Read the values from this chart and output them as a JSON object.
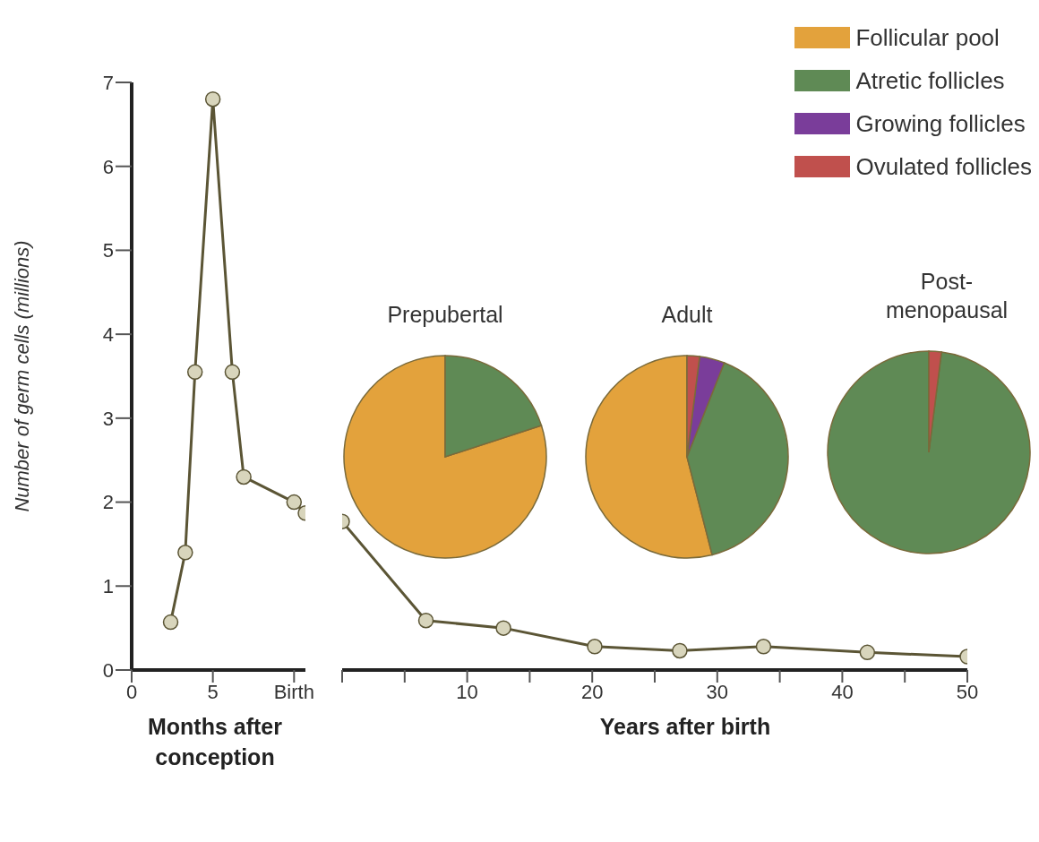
{
  "chart_data": [
    {
      "type": "line",
      "xlabel": "Months after conception",
      "ylabel": "Number of germ cells (millions)",
      "xlim": [
        0,
        10.7
      ],
      "xticks": [
        0,
        5,
        {
          "value": 10,
          "label": "Birth"
        }
      ],
      "ylim": [
        0,
        7
      ],
      "yticks": [
        0,
        1,
        2,
        3,
        4,
        5,
        6,
        7
      ],
      "marker": "circle",
      "series": [
        {
          "color": "#5b5535",
          "x": [
            2.4,
            3.3,
            3.9,
            5,
            6.2,
            6.9,
            10,
            10.7
          ],
          "values": [
            0.57,
            1.4,
            3.55,
            6.8,
            3.55,
            2.3,
            2.0,
            1.87
          ]
        }
      ]
    },
    {
      "type": "line",
      "xlabel": "Years after birth",
      "tick_labels": "x",
      "xlim": [
        0,
        50
      ],
      "xticks": [
        {
          "value": 0,
          "label": null
        },
        {
          "value": 5,
          "label": null
        },
        10,
        {
          "value": 15,
          "label": null
        },
        20,
        {
          "value": 25,
          "label": null
        },
        30,
        {
          "value": 35,
          "label": null
        },
        40,
        {
          "value": 45,
          "label": null
        },
        50
      ],
      "ylim": [
        0,
        7
      ],
      "marker": "circle",
      "series": [
        {
          "color": "#5b5535",
          "x": [
            0,
            6.7,
            12.9,
            20.2,
            27,
            33.7,
            42,
            50
          ],
          "values": [
            1.77,
            0.59,
            0.5,
            0.28,
            0.23,
            0.28,
            0.21,
            0.16
          ]
        }
      ]
    },
    {
      "type": "pie",
      "categories": [
        "Follicular pool",
        "Atretic follicles",
        "Growing follicles",
        "Ovulated follicles"
      ],
      "colors": [
        "#e3a23c",
        "#5f8a55",
        "#7a3d9a",
        "#c0504d"
      ],
      "legend": "top right",
      "series": [
        {
          "name": "Prepubertal",
          "values": [
            80,
            20,
            0,
            0
          ]
        },
        {
          "name": "Adult",
          "values": [
            54,
            40,
            4,
            2
          ]
        },
        {
          "name": "Post-\nmenopausal",
          "values": [
            0,
            98,
            0,
            2
          ]
        }
      ]
    }
  ]
}
